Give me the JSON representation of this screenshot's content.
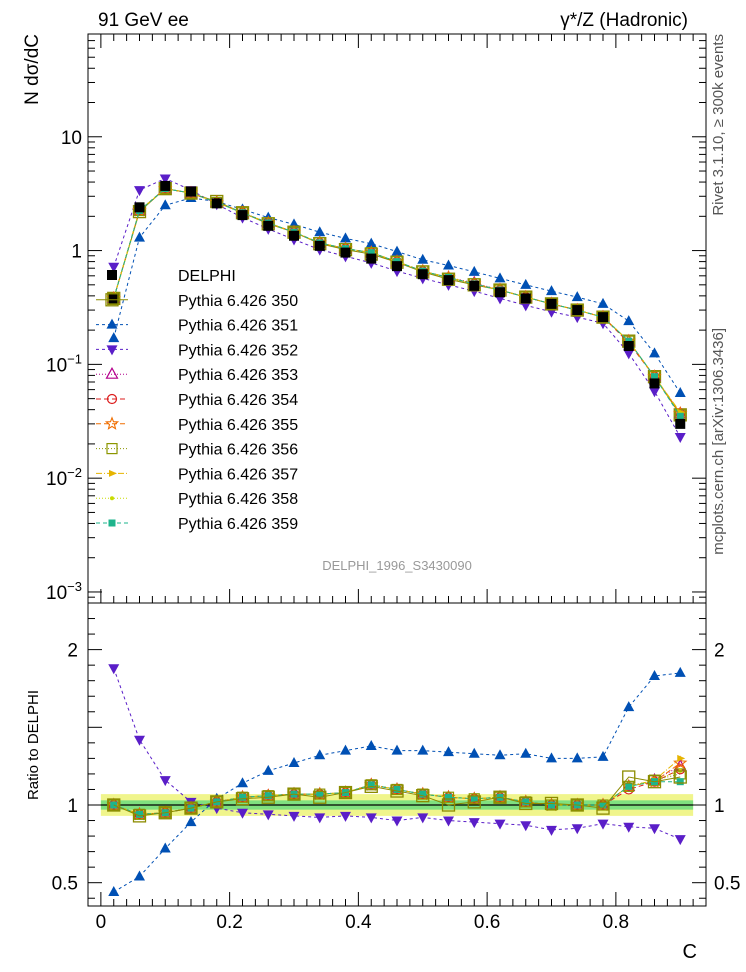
{
  "header": {
    "left": "91 GeV ee",
    "right": "γ*/Z (Hadronic)"
  },
  "side_labels": {
    "rivet": "Rivet 3.1.10, ≥ 300k events",
    "mcplots": "mcplots.cern.ch [arXiv:1306.3436]"
  },
  "watermark": "DELPHI_1996_S3430090",
  "chart_data": [
    {
      "type": "line",
      "ylabel": "N dσ/dC",
      "xlabel": "",
      "log_y": true,
      "ylim": [
        0.0008,
        80
      ],
      "xlim": [
        -0.02,
        0.94
      ],
      "ytick_labels": [
        {
          "value": 10,
          "label": "10"
        },
        {
          "value": 1,
          "label": "1"
        },
        {
          "value": 0.1,
          "label": "10",
          "exp": "−1"
        },
        {
          "value": 0.01,
          "label": "10",
          "exp": "−2"
        },
        {
          "value": 0.001,
          "label": "10",
          "exp": "−3"
        }
      ],
      "legend_placement": "left",
      "x": [
        0.02,
        0.06,
        0.1,
        0.14,
        0.18,
        0.22,
        0.26,
        0.3,
        0.34,
        0.38,
        0.42,
        0.46,
        0.5,
        0.54,
        0.58,
        0.62,
        0.66,
        0.7,
        0.74,
        0.78,
        0.82,
        0.86,
        0.9
      ],
      "series": [
        {
          "name": "DELPHI",
          "color": "#000000",
          "marker": "square-filled",
          "dash": "none",
          "values": [
            0.38,
            2.4,
            3.7,
            3.3,
            2.6,
            2.05,
            1.65,
            1.35,
            1.1,
            0.96,
            0.85,
            0.73,
            0.62,
            0.55,
            0.49,
            0.43,
            0.38,
            0.34,
            0.3,
            0.26,
            0.145,
            0.068,
            0.03
          ]
        },
        {
          "name": "Pythia 6.426 350",
          "color": "#8b8b00",
          "marker": "square-open-large",
          "dash": "none",
          "values": [
            0.38,
            2.2,
            3.5,
            3.2,
            2.7,
            2.15,
            1.72,
            1.45,
            1.15,
            1.02,
            0.93,
            0.79,
            0.65,
            0.56,
            0.5,
            0.45,
            0.39,
            0.34,
            0.3,
            0.26,
            0.16,
            0.078,
            0.036
          ]
        },
        {
          "name": "Pythia 6.426 351",
          "color": "#0050b4",
          "marker": "triangle-up",
          "dash": "3,3",
          "values": [
            0.17,
            1.3,
            2.5,
            2.9,
            2.7,
            2.3,
            1.95,
            1.7,
            1.45,
            1.28,
            1.15,
            0.98,
            0.83,
            0.74,
            0.65,
            0.57,
            0.5,
            0.44,
            0.39,
            0.34,
            0.24,
            0.125,
            0.056
          ]
        },
        {
          "name": "Pythia 6.426 352",
          "color": "#5a1ec8",
          "marker": "triangle-down",
          "dash": "3,3",
          "values": [
            0.72,
            3.4,
            4.3,
            3.4,
            2.55,
            1.95,
            1.55,
            1.25,
            1.02,
            0.89,
            0.78,
            0.66,
            0.57,
            0.5,
            0.44,
            0.38,
            0.33,
            0.29,
            0.26,
            0.23,
            0.125,
            0.058,
            0.023
          ]
        },
        {
          "name": "Pythia 6.426 353",
          "color": "#b4008c",
          "marker": "triangle-open",
          "dash": "1,2",
          "values": [
            0.38,
            2.25,
            3.5,
            3.2,
            2.65,
            2.15,
            1.75,
            1.45,
            1.17,
            1.04,
            0.96,
            0.8,
            0.66,
            0.58,
            0.52,
            0.45,
            0.39,
            0.34,
            0.3,
            0.26,
            0.16,
            0.078,
            0.037
          ]
        },
        {
          "name": "Pythia 6.426 354",
          "color": "#dc1e1e",
          "marker": "circle-open",
          "dash": "5,3",
          "values": [
            0.38,
            2.25,
            3.5,
            3.2,
            2.65,
            2.15,
            1.75,
            1.45,
            1.17,
            1.04,
            0.96,
            0.8,
            0.66,
            0.58,
            0.51,
            0.45,
            0.39,
            0.34,
            0.3,
            0.26,
            0.155,
            0.078,
            0.037
          ]
        },
        {
          "name": "Pythia 6.426 355",
          "color": "#f06e00",
          "marker": "star-open",
          "dash": "5,3",
          "values": [
            0.38,
            2.25,
            3.5,
            3.2,
            2.65,
            2.15,
            1.75,
            1.45,
            1.17,
            1.04,
            0.96,
            0.8,
            0.66,
            0.58,
            0.51,
            0.45,
            0.39,
            0.34,
            0.3,
            0.26,
            0.16,
            0.078,
            0.037
          ]
        },
        {
          "name": "Pythia 6.426 356",
          "color": "#8c9600",
          "marker": "square-open",
          "dash": "1,2",
          "values": [
            0.38,
            2.25,
            3.5,
            3.2,
            2.65,
            2.15,
            1.75,
            1.45,
            1.17,
            1.04,
            0.96,
            0.8,
            0.66,
            0.57,
            0.51,
            0.45,
            0.39,
            0.34,
            0.3,
            0.26,
            0.16,
            0.078,
            0.036
          ]
        },
        {
          "name": "Pythia 6.426 357",
          "color": "#e6b400",
          "marker": "arrow",
          "dash": "6,2,1,2",
          "values": [
            0.38,
            2.25,
            3.5,
            3.2,
            2.65,
            2.15,
            1.75,
            1.45,
            1.17,
            1.04,
            0.96,
            0.8,
            0.66,
            0.58,
            0.51,
            0.45,
            0.39,
            0.34,
            0.3,
            0.26,
            0.16,
            0.078,
            0.038
          ]
        },
        {
          "name": "Pythia 6.426 358",
          "color": "#c8dc00",
          "marker": "dot",
          "dash": "1,2",
          "values": [
            0.38,
            2.25,
            3.5,
            3.2,
            2.65,
            2.15,
            1.75,
            1.45,
            1.17,
            1.04,
            0.96,
            0.8,
            0.66,
            0.58,
            0.51,
            0.45,
            0.39,
            0.34,
            0.3,
            0.26,
            0.16,
            0.078,
            0.037
          ]
        },
        {
          "name": "Pythia 6.426 359",
          "color": "#1eb48c",
          "marker": "square-small",
          "dash": "4,3",
          "values": [
            0.38,
            2.25,
            3.5,
            3.2,
            2.65,
            2.15,
            1.75,
            1.45,
            1.17,
            1.04,
            0.96,
            0.8,
            0.66,
            0.58,
            0.51,
            0.45,
            0.39,
            0.34,
            0.3,
            0.26,
            0.16,
            0.078,
            0.035
          ]
        }
      ]
    },
    {
      "type": "line",
      "ylabel": "Ratio to DELPHI",
      "xlabel": "C",
      "log_y": false,
      "ylim": [
        0.35,
        2.3
      ],
      "xlim": [
        -0.02,
        0.94
      ],
      "xtick_labels": [
        "0",
        "0.2",
        "0.4",
        "0.6",
        "0.8"
      ],
      "xtick_values": [
        0,
        0.2,
        0.4,
        0.6,
        0.8
      ],
      "ytick_labels": [
        "0.5",
        "1",
        "2"
      ],
      "ytick_values": [
        0.5,
        1,
        2
      ],
      "band_inner": 0.03,
      "band_outer": 0.07,
      "band_colors": {
        "inner": "#7fe07f",
        "outer": "#f0f58c"
      },
      "x": [
        0.02,
        0.06,
        0.1,
        0.14,
        0.18,
        0.22,
        0.26,
        0.3,
        0.34,
        0.38,
        0.42,
        0.46,
        0.5,
        0.54,
        0.58,
        0.62,
        0.66,
        0.7,
        0.74,
        0.78,
        0.82,
        0.86,
        0.9
      ],
      "series": [
        {
          "name": "Pythia 6.426 350",
          "values": [
            1.0,
            0.93,
            0.95,
            0.98,
            1.02,
            1.04,
            1.05,
            1.07,
            1.05,
            1.08,
            1.12,
            1.09,
            1.06,
            1.0,
            1.02,
            1.05,
            1.01,
            1.01,
            1.0,
            0.98,
            1.18,
            1.15,
            1.18
          ]
        },
        {
          "name": "Pythia 6.426 351",
          "values": [
            0.44,
            0.54,
            0.72,
            0.89,
            1.04,
            1.14,
            1.22,
            1.27,
            1.32,
            1.35,
            1.38,
            1.35,
            1.35,
            1.34,
            1.33,
            1.32,
            1.33,
            1.3,
            1.3,
            1.31,
            1.63,
            1.83,
            1.85
          ]
        },
        {
          "name": "Pythia 6.426 352",
          "values": [
            1.88,
            1.42,
            1.16,
            1.02,
            0.98,
            0.95,
            0.94,
            0.93,
            0.92,
            0.93,
            0.92,
            0.9,
            0.92,
            0.9,
            0.89,
            0.88,
            0.87,
            0.84,
            0.85,
            0.88,
            0.86,
            0.85,
            0.78
          ]
        },
        {
          "name": "Pythia 6.426 353",
          "values": [
            1.0,
            0.94,
            0.95,
            0.98,
            1.02,
            1.05,
            1.06,
            1.07,
            1.07,
            1.08,
            1.13,
            1.1,
            1.07,
            1.05,
            1.04,
            1.05,
            1.02,
            1.0,
            1.0,
            1.0,
            1.12,
            1.16,
            1.25
          ]
        },
        {
          "name": "Pythia 6.426 354",
          "values": [
            1.0,
            0.94,
            0.95,
            0.98,
            1.02,
            1.05,
            1.06,
            1.07,
            1.07,
            1.08,
            1.13,
            1.1,
            1.07,
            1.05,
            1.04,
            1.05,
            1.02,
            1.0,
            1.0,
            1.0,
            1.1,
            1.15,
            1.23
          ]
        },
        {
          "name": "Pythia 6.426 355",
          "values": [
            1.0,
            0.94,
            0.95,
            0.98,
            1.02,
            1.05,
            1.06,
            1.07,
            1.07,
            1.08,
            1.13,
            1.1,
            1.07,
            1.05,
            1.04,
            1.05,
            1.02,
            1.0,
            1.0,
            1.0,
            1.12,
            1.15,
            1.27
          ]
        },
        {
          "name": "Pythia 6.426 356",
          "values": [
            1.0,
            0.94,
            0.95,
            0.98,
            1.02,
            1.05,
            1.06,
            1.07,
            1.07,
            1.08,
            1.13,
            1.1,
            1.07,
            1.05,
            1.04,
            1.05,
            1.02,
            1.0,
            1.0,
            1.0,
            1.12,
            1.16,
            1.2
          ]
        },
        {
          "name": "Pythia 6.426 357",
          "values": [
            1.0,
            0.94,
            0.95,
            0.98,
            1.02,
            1.05,
            1.06,
            1.07,
            1.07,
            1.08,
            1.13,
            1.1,
            1.07,
            1.05,
            1.04,
            1.05,
            1.02,
            1.0,
            1.0,
            1.0,
            1.12,
            1.16,
            1.3
          ]
        },
        {
          "name": "Pythia 6.426 358",
          "values": [
            1.0,
            0.94,
            0.95,
            0.98,
            1.02,
            1.05,
            1.06,
            1.07,
            1.07,
            1.08,
            1.13,
            1.1,
            1.07,
            1.05,
            1.04,
            1.05,
            1.02,
            1.0,
            1.0,
            1.0,
            1.12,
            1.16,
            1.22
          ]
        },
        {
          "name": "Pythia 6.426 359",
          "values": [
            1.0,
            0.94,
            0.95,
            0.98,
            1.02,
            1.05,
            1.06,
            1.07,
            1.07,
            1.08,
            1.13,
            1.1,
            1.07,
            1.05,
            1.04,
            1.05,
            1.02,
            1.0,
            1.0,
            1.0,
            1.12,
            1.15,
            1.15
          ]
        }
      ]
    }
  ]
}
